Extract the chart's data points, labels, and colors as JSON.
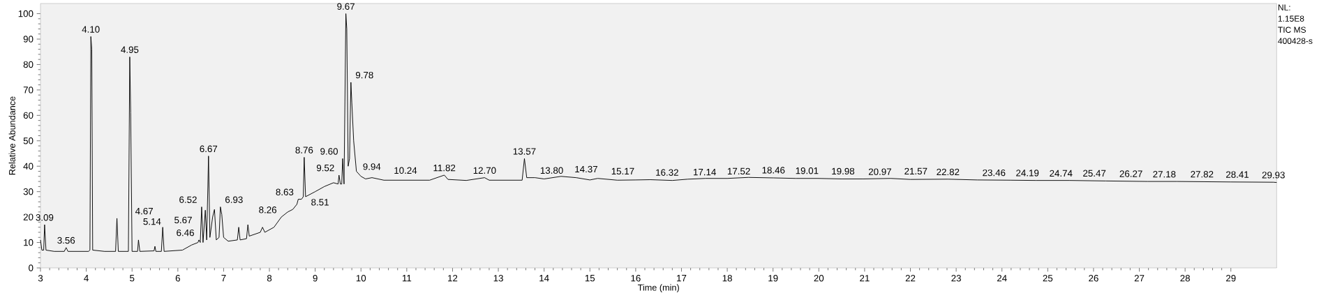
{
  "chart_data": {
    "type": "line",
    "xlabel": "Time (min)",
    "ylabel": "Relative Abundance",
    "xlim": [
      3,
      30
    ],
    "ylim": [
      0,
      104
    ],
    "xticks": [
      3,
      4,
      5,
      6,
      7,
      8,
      9,
      10,
      11,
      12,
      13,
      14,
      15,
      16,
      17,
      18,
      19,
      20,
      21,
      22,
      23,
      24,
      25,
      26,
      27,
      28,
      29
    ],
    "yticks": [
      0,
      10,
      20,
      30,
      40,
      50,
      60,
      70,
      80,
      90,
      100
    ],
    "grid": false,
    "series": [
      {
        "color": "#000000",
        "x": [
          3.0,
          3.03,
          3.07,
          3.09,
          3.12,
          3.3,
          3.52,
          3.56,
          3.6,
          4.05,
          4.08,
          4.1,
          4.12,
          4.14,
          4.4,
          4.64,
          4.67,
          4.7,
          4.92,
          4.95,
          4.97,
          5.0,
          5.12,
          5.14,
          5.17,
          5.48,
          5.5,
          5.52,
          5.64,
          5.67,
          5.7,
          6.1,
          6.3,
          6.44,
          6.46,
          6.49,
          6.52,
          6.55,
          6.6,
          6.63,
          6.67,
          6.7,
          6.76,
          6.8,
          6.84,
          6.9,
          6.93,
          6.96,
          7.0,
          7.1,
          7.3,
          7.33,
          7.36,
          7.5,
          7.53,
          7.56,
          7.8,
          7.85,
          7.9,
          8.1,
          8.26,
          8.4,
          8.51,
          8.6,
          8.63,
          8.7,
          8.74,
          8.76,
          8.79,
          9.0,
          9.2,
          9.4,
          9.5,
          9.52,
          9.55,
          9.58,
          9.6,
          9.63,
          9.67,
          9.69,
          9.72,
          9.75,
          9.78,
          9.8,
          9.84,
          9.9,
          10.0,
          10.1,
          10.24,
          10.5,
          11.0,
          11.5,
          11.82,
          11.9,
          12.3,
          12.7,
          12.8,
          13.3,
          13.52,
          13.57,
          13.62,
          13.8,
          14.0,
          14.37,
          14.7,
          15.0,
          15.17,
          15.6,
          16.0,
          16.32,
          16.8,
          17.14,
          17.52,
          18.0,
          18.46,
          19.01,
          19.5,
          19.98,
          20.5,
          20.97,
          21.57,
          22.0,
          22.82,
          23.46,
          24.19,
          24.74,
          25.47,
          26.27,
          27.18,
          27.82,
          28.41,
          29.0,
          29.93,
          30.0
        ],
        "values": [
          11,
          7,
          7,
          17,
          7,
          6.5,
          6.5,
          8,
          6.5,
          6.5,
          7,
          91,
          86,
          7,
          6.5,
          6.5,
          19.5,
          6.5,
          6.5,
          83,
          61,
          6.5,
          6.5,
          11,
          6.5,
          6.7,
          8.5,
          6.5,
          6.5,
          16,
          6.5,
          7,
          9,
          10,
          11,
          10,
          24,
          10,
          22.7,
          11,
          44,
          12,
          20,
          23,
          11,
          12,
          24,
          21,
          12,
          10.5,
          11,
          16,
          11,
          11.5,
          17,
          12.5,
          14,
          16,
          14,
          16,
          20,
          22,
          23,
          25,
          27,
          27,
          28,
          43.5,
          28,
          30,
          32,
          33.5,
          33,
          36.5,
          33,
          33,
          43,
          33,
          100,
          94,
          40,
          43,
          73,
          65,
          50,
          38,
          36,
          35,
          35.5,
          34.5,
          34.5,
          34.5,
          36.5,
          34.8,
          34.4,
          35.5,
          34.5,
          34.5,
          34.5,
          43,
          35.5,
          35.5,
          35,
          36,
          35.5,
          34.6,
          35.2,
          34.5,
          34.6,
          34.7,
          34.4,
          34.9,
          35.2,
          35.2,
          35.6,
          35.4,
          35.2,
          35.2,
          35,
          35,
          35.2,
          34.8,
          34.9,
          34.6,
          34.5,
          34.4,
          34.4,
          34.2,
          34,
          34,
          33.9,
          33.8,
          33.7,
          33.6
        ]
      }
    ],
    "annotations": [
      {
        "text": "3.09",
        "x": 3.09,
        "y": 17
      },
      {
        "text": "3.56",
        "x": 3.56,
        "y": 8
      },
      {
        "text": "4.10",
        "x": 4.1,
        "y": 91
      },
      {
        "text": "4.67",
        "x": 4.67,
        "y": 19.5
      },
      {
        "text": "4.95",
        "x": 4.95,
        "y": 83
      },
      {
        "text": "5.14",
        "x": 5.14,
        "y": 11
      },
      {
        "text": "5.67",
        "x": 5.67,
        "y": 16
      },
      {
        "text": "6.46",
        "x": 6.46,
        "y": 11
      },
      {
        "text": "6.52",
        "x": 6.52,
        "y": 24
      },
      {
        "text": "6.67",
        "x": 6.67,
        "y": 44
      },
      {
        "text": "6.93",
        "x": 6.93,
        "y": 24
      },
      {
        "text": "8.26",
        "x": 8.26,
        "y": 20
      },
      {
        "text": "8.51",
        "x": 8.51,
        "y": 23
      },
      {
        "text": "8.63",
        "x": 8.63,
        "y": 27
      },
      {
        "text": "8.76",
        "x": 8.76,
        "y": 43.5
      },
      {
        "text": "9.52",
        "x": 9.52,
        "y": 36.5
      },
      {
        "text": "9.60",
        "x": 9.6,
        "y": 43
      },
      {
        "text": "9.67",
        "x": 9.67,
        "y": 100
      },
      {
        "text": "9.78",
        "x": 9.78,
        "y": 73
      },
      {
        "text": "9.94",
        "x": 9.94,
        "y": 37
      },
      {
        "text": "10.24",
        "x": 10.24,
        "y": 35.5
      },
      {
        "text": "11.82",
        "x": 11.82,
        "y": 36.5
      },
      {
        "text": "12.70",
        "x": 12.7,
        "y": 35.5
      },
      {
        "text": "13.57",
        "x": 13.57,
        "y": 43
      },
      {
        "text": "13.80",
        "x": 13.8,
        "y": 35.5
      },
      {
        "text": "14.37",
        "x": 14.37,
        "y": 36
      },
      {
        "text": "15.17",
        "x": 15.17,
        "y": 35.2
      },
      {
        "text": "16.32",
        "x": 16.32,
        "y": 34.7
      },
      {
        "text": "17.14",
        "x": 17.14,
        "y": 34.9
      },
      {
        "text": "17.52",
        "x": 17.52,
        "y": 35.2
      },
      {
        "text": "18.46",
        "x": 18.46,
        "y": 35.6
      },
      {
        "text": "19.01",
        "x": 19.01,
        "y": 35.4
      },
      {
        "text": "19.98",
        "x": 19.98,
        "y": 35.2
      },
      {
        "text": "20.97",
        "x": 20.97,
        "y": 35
      },
      {
        "text": "21.57",
        "x": 21.57,
        "y": 35.2
      },
      {
        "text": "22.82",
        "x": 22.82,
        "y": 34.9
      },
      {
        "text": "23.46",
        "x": 23.46,
        "y": 34.6
      },
      {
        "text": "24.19",
        "x": 24.19,
        "y": 34.5
      },
      {
        "text": "24.74",
        "x": 24.74,
        "y": 34.4
      },
      {
        "text": "25.47",
        "x": 25.47,
        "y": 34.4
      },
      {
        "text": "26.27",
        "x": 26.27,
        "y": 34.2
      },
      {
        "text": "27.18",
        "x": 27.18,
        "y": 34
      },
      {
        "text": "27.82",
        "x": 27.82,
        "y": 34
      },
      {
        "text": "28.41",
        "x": 28.41,
        "y": 33.9
      },
      {
        "text": "29.93",
        "x": 29.93,
        "y": 33.7
      },
      "NL:",
      "1.15E8",
      "TIC  MS",
      "400428-s"
    ]
  }
}
